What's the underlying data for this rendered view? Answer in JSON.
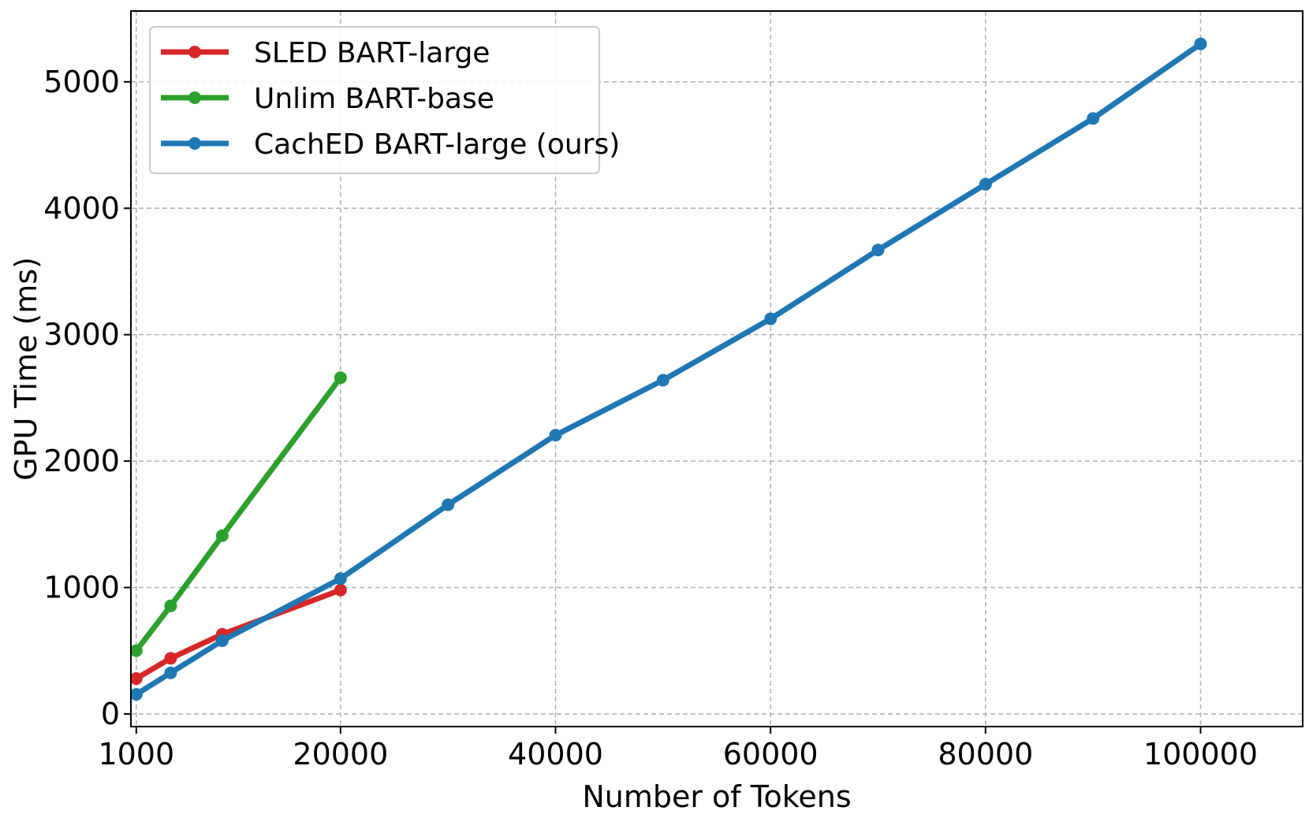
{
  "chart_data": {
    "type": "line",
    "title": "",
    "xlabel": "Number of Tokens",
    "ylabel": "GPU Time (ms)",
    "xlim": [
      500,
      109500
    ],
    "ylim": [
      -100,
      5560
    ],
    "x_ticks": [
      1000,
      20000,
      40000,
      60000,
      80000,
      100000
    ],
    "y_ticks": [
      0,
      1000,
      2000,
      3000,
      4000,
      5000
    ],
    "grid": true,
    "legend_position": "top-left",
    "series": [
      {
        "name": "SLED BART-large",
        "color": "#d62728",
        "x": [
          1000,
          4200,
          9000,
          20000
        ],
        "y": [
          280,
          440,
          630,
          980
        ]
      },
      {
        "name": "Unlim BART-base",
        "color": "#2ca02c",
        "x": [
          1000,
          4200,
          9000,
          20000
        ],
        "y": [
          500,
          855,
          1410,
          2660
        ]
      },
      {
        "name": "CachED BART-large (ours)",
        "color": "#1f77b4",
        "x": [
          1000,
          4200,
          9000,
          20000,
          30000,
          40000,
          50000,
          60000,
          70000,
          80000,
          90000,
          100000
        ],
        "y": [
          155,
          325,
          580,
          1070,
          1655,
          2205,
          2640,
          3125,
          3670,
          4190,
          4710,
          5300
        ]
      }
    ]
  }
}
